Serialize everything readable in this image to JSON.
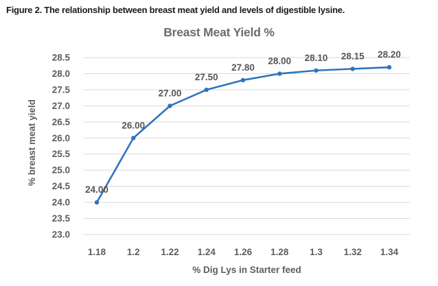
{
  "figure": {
    "caption": "Figure 2. The relationship between breast meat yield and levels of digestible lysine."
  },
  "chart_data": {
    "type": "line",
    "title": "Breast Meat Yield %",
    "xlabel": "% Dig Lys in Starter feed",
    "ylabel": "% breast meat yield",
    "categories": [
      "1.18",
      "1.2",
      "1.22",
      "1.24",
      "1.26",
      "1.28",
      "1.3",
      "1.32",
      "1.34"
    ],
    "series": [
      {
        "name": "Breast Meat Yield %",
        "values": [
          24.0,
          26.0,
          27.0,
          27.5,
          27.8,
          28.0,
          28.1,
          28.15,
          28.2
        ],
        "data_labels": [
          "24.00",
          "26.00",
          "27.00",
          "27.50",
          "27.80",
          "28.00",
          "28.10",
          "28.15",
          "28.20"
        ]
      }
    ],
    "y_ticks": [
      "28.5",
      "28.0",
      "27.5",
      "27.0",
      "26.5",
      "26.0",
      "25.5",
      "25.0",
      "24.5",
      "24.0",
      "23.5",
      "23.0"
    ],
    "ylim": [
      23.0,
      28.5
    ],
    "grid": true,
    "legend_position": "none",
    "marker": "circle",
    "colors": {
      "line": "#2E74BC",
      "marker": "#2E74BC",
      "gridline": "#D9D9D9",
      "axis_text": "#5D5D5D",
      "data_label_text": "#565656",
      "title_text": "#6C6C6C",
      "caption_text": "#1B1B1B"
    }
  }
}
